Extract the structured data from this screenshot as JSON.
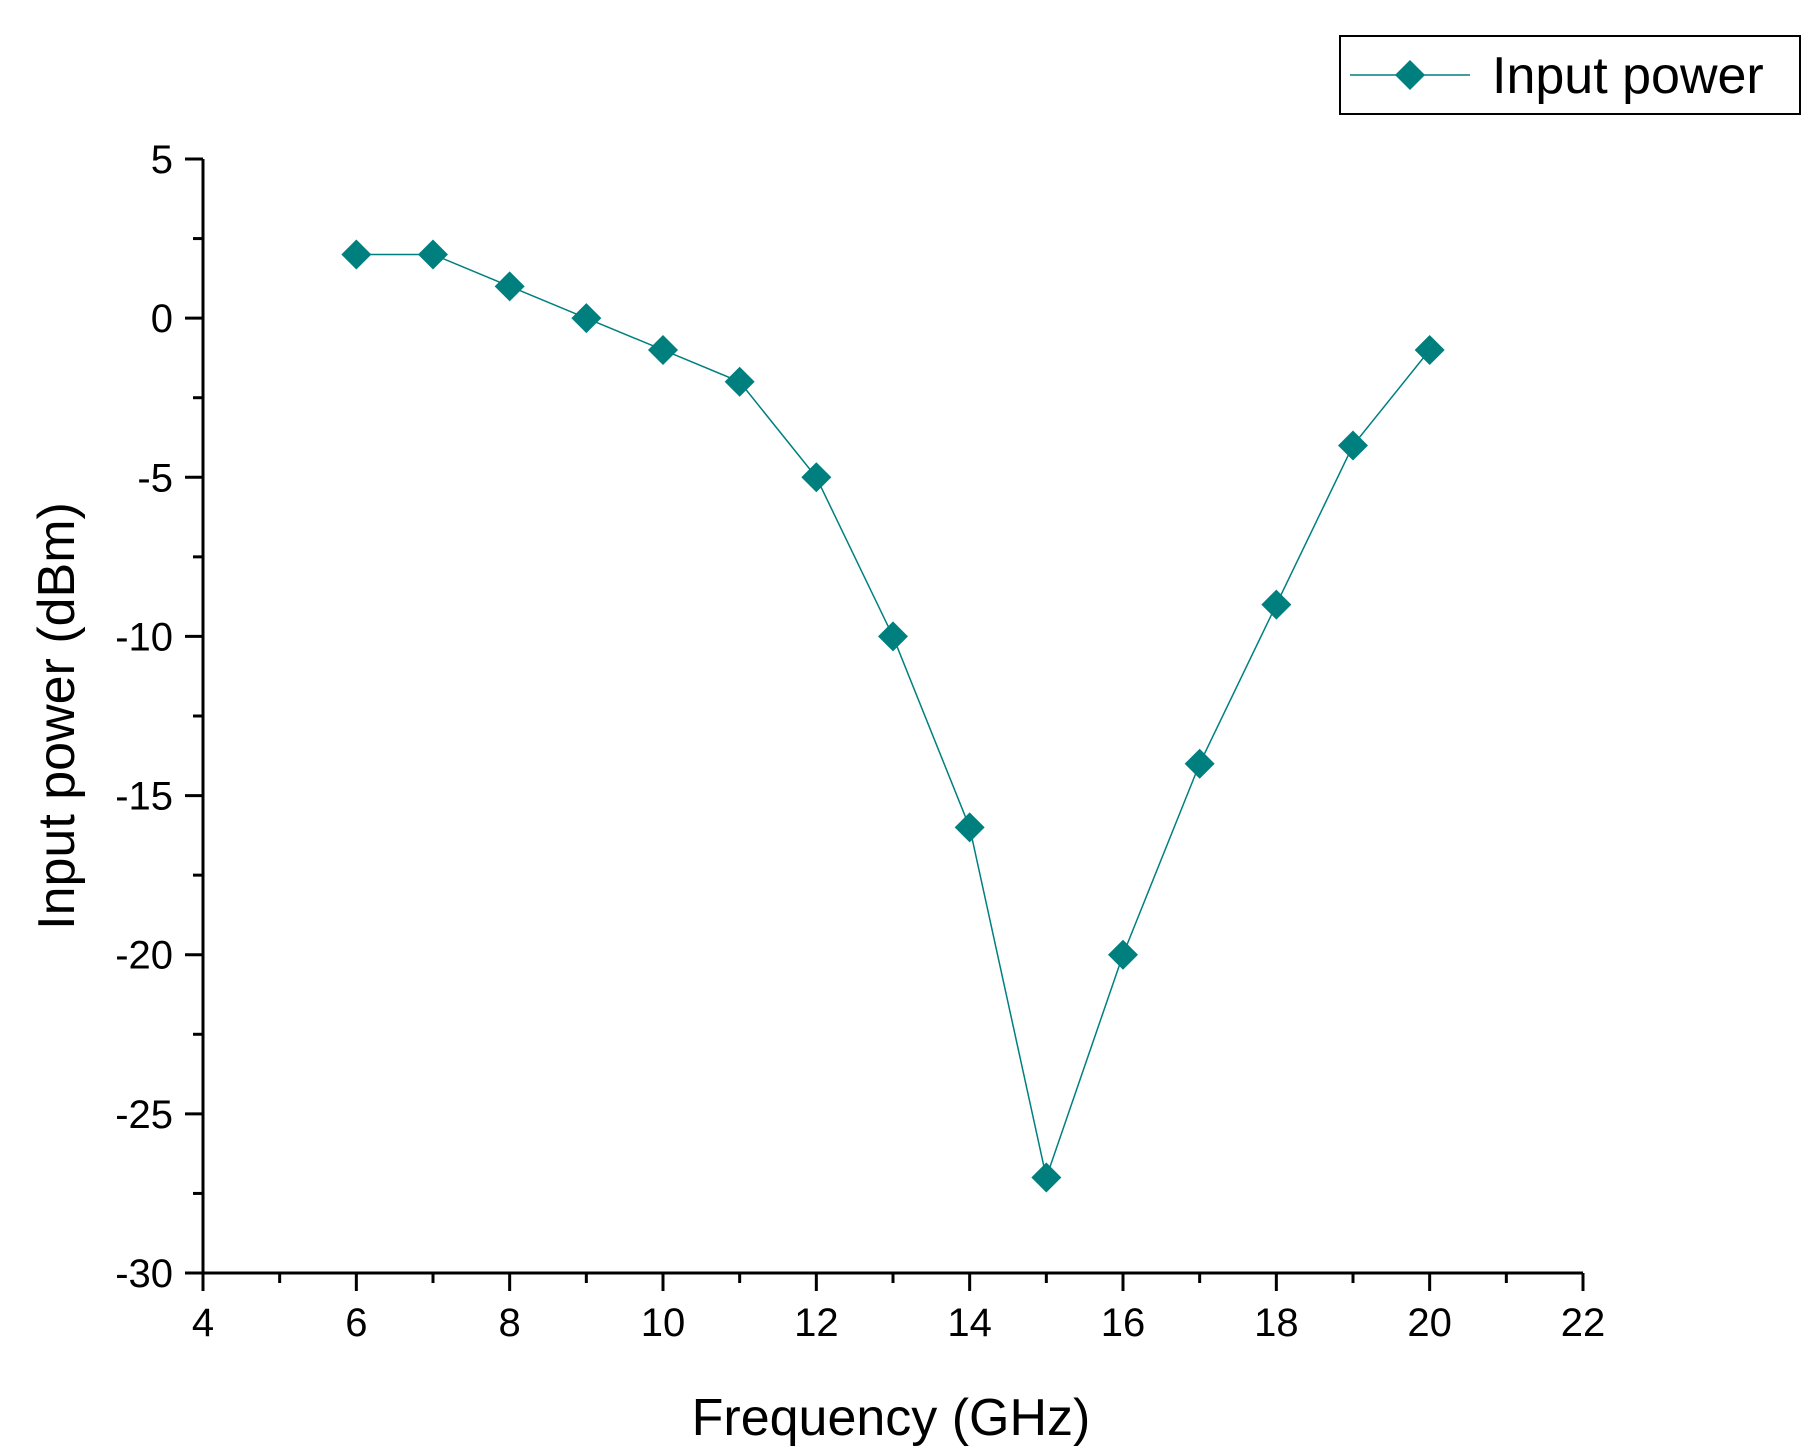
{
  "chart_data": {
    "type": "line",
    "title": "",
    "xlabel": "Frequency (GHz)",
    "ylabel": "Input power (dBm)",
    "xlim": [
      4,
      22
    ],
    "ylim": [
      -30,
      5
    ],
    "x_ticks": [
      "4",
      "6",
      "8",
      "10",
      "12",
      "14",
      "16",
      "18",
      "20",
      "22"
    ],
    "y_ticks": [
      "5",
      "0",
      "-5",
      "-10",
      "-15",
      "-20",
      "-25",
      "-30"
    ],
    "grid": false,
    "legend_position": "top-right",
    "series": [
      {
        "name": "Input power",
        "marker": "diamond",
        "color": "#007f7f",
        "x": [
          6,
          7,
          8,
          9,
          10,
          11,
          12,
          13,
          14,
          15,
          16,
          17,
          18,
          19,
          20
        ],
        "values": [
          2,
          2,
          1,
          0,
          -1,
          -2,
          -5,
          -10,
          -16,
          -27,
          -20,
          -14,
          -9,
          -4,
          -1
        ]
      }
    ]
  }
}
